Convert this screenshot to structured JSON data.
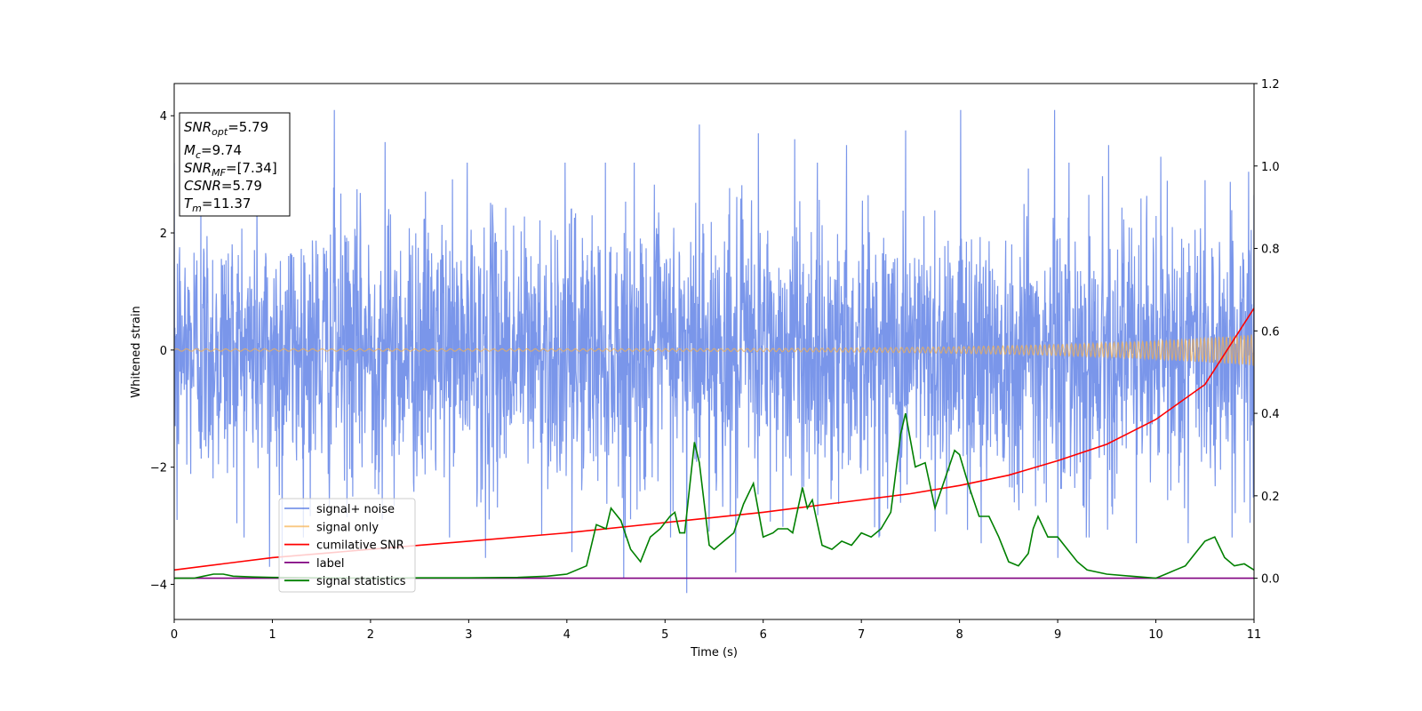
{
  "chart_data": {
    "type": "line",
    "title": "",
    "xlabel": "Time (s)",
    "ylabel": "Whitened strain",
    "xlim": [
      0,
      11
    ],
    "ylim": [
      -4.6,
      4.55
    ],
    "y2lim": [
      -0.1,
      1.2
    ],
    "x_ticks": [
      "0",
      "1",
      "2",
      "3",
      "4",
      "5",
      "6",
      "7",
      "8",
      "9",
      "10",
      "11"
    ],
    "y_ticks": [
      "−4",
      "−2",
      "0",
      "2",
      "4"
    ],
    "y2_ticks": [
      "0.0",
      "0.2",
      "0.4",
      "0.6",
      "0.8",
      "1.0",
      "1.2"
    ],
    "grid": false,
    "legend_position": "lower-left",
    "annotation_box": {
      "position": "top-left",
      "lines": [
        {
          "base": "SNR",
          "sub": "opt",
          "value": "=5.79"
        },
        {
          "base": "M",
          "sub": "c",
          "value": "=9.74"
        },
        {
          "base": "SNR",
          "sub": "MF",
          "value": "=[7.34]"
        },
        {
          "base": "CSNR",
          "sub": "",
          "value": "=5.79"
        },
        {
          "base": "T",
          "sub": "m",
          "value": "=11.37"
        }
      ]
    },
    "series": [
      {
        "name": "signal+ noise",
        "color": "#4169e1",
        "axis": "left",
        "style": "noise",
        "noise_std": 1.0,
        "peaks": [
          [
            0.03,
            -2.9
          ],
          [
            0.27,
            2.5
          ],
          [
            0.97,
            -3.7
          ],
          [
            1.1,
            -3.6
          ],
          [
            1.63,
            4.1
          ],
          [
            2.15,
            3.55
          ],
          [
            3.17,
            -3.55
          ],
          [
            4.05,
            -3.45
          ],
          [
            4.58,
            -3.9
          ],
          [
            5.22,
            -4.15
          ],
          [
            5.35,
            3.85
          ],
          [
            5.45,
            -3.1
          ],
          [
            5.72,
            -3.8
          ],
          [
            5.95,
            3.7
          ],
          [
            6.32,
            3.6
          ],
          [
            6.85,
            3.5
          ],
          [
            7.45,
            3.75
          ],
          [
            7.75,
            -3.1
          ],
          [
            8.01,
            4.1
          ],
          [
            8.22,
            -3.3
          ],
          [
            8.7,
            3.1
          ],
          [
            8.97,
            4.1
          ],
          [
            9.0,
            -3.55
          ],
          [
            9.32,
            -3.2
          ],
          [
            9.52,
            3.5
          ],
          [
            9.8,
            -3.3
          ],
          [
            10.05,
            3.3
          ],
          [
            10.33,
            -3.3
          ],
          [
            10.5,
            2.9
          ],
          [
            10.96,
            -2.95
          ]
        ]
      },
      {
        "name": "signal only",
        "color": "#f6b04c",
        "axis": "left",
        "style": "chirp",
        "amp_start": 0.02,
        "amp_end": 0.27
      },
      {
        "name": "cumilative SNR",
        "color": "#ff0000",
        "axis": "right",
        "x": [
          0,
          1,
          2,
          3,
          4,
          5,
          6,
          7,
          7.5,
          8,
          8.5,
          9,
          9.5,
          10,
          10.5,
          11
        ],
        "values": [
          0.02,
          0.05,
          0.07,
          0.09,
          0.11,
          0.135,
          0.16,
          0.19,
          0.205,
          0.225,
          0.25,
          0.285,
          0.325,
          0.385,
          0.47,
          0.655
        ]
      },
      {
        "name": "label",
        "color": "#800080",
        "axis": "right",
        "x": [
          0,
          11
        ],
        "values": [
          0,
          0
        ]
      },
      {
        "name": "signal statistics",
        "color": "#008000",
        "axis": "right",
        "x": [
          0,
          0.2,
          0.3,
          0.4,
          0.5,
          0.6,
          0.8,
          1.0,
          1.5,
          2.0,
          2.5,
          3.0,
          3.5,
          3.8,
          4.0,
          4.1,
          4.2,
          4.3,
          4.4,
          4.45,
          4.55,
          4.65,
          4.75,
          4.85,
          4.95,
          5.05,
          5.1,
          5.15,
          5.2,
          5.3,
          5.35,
          5.45,
          5.5,
          5.6,
          5.7,
          5.8,
          5.9,
          6.0,
          6.1,
          6.15,
          6.25,
          6.3,
          6.4,
          6.45,
          6.5,
          6.6,
          6.7,
          6.8,
          6.9,
          7.0,
          7.1,
          7.2,
          7.3,
          7.4,
          7.45,
          7.55,
          7.65,
          7.75,
          7.85,
          7.95,
          8.0,
          8.1,
          8.2,
          8.3,
          8.4,
          8.5,
          8.6,
          8.7,
          8.75,
          8.8,
          8.9,
          9.0,
          9.1,
          9.2,
          9.3,
          9.5,
          10.0,
          10.1,
          10.2,
          10.3,
          10.4,
          10.5,
          10.6,
          10.7,
          10.8,
          10.9,
          11.0
        ],
        "values": [
          0.0,
          0.0,
          0.005,
          0.01,
          0.01,
          0.005,
          0.003,
          0.002,
          0.001,
          0.0,
          0.001,
          0.001,
          0.002,
          0.005,
          0.01,
          0.02,
          0.03,
          0.13,
          0.12,
          0.17,
          0.14,
          0.07,
          0.04,
          0.1,
          0.12,
          0.15,
          0.16,
          0.11,
          0.11,
          0.33,
          0.28,
          0.08,
          0.07,
          0.09,
          0.11,
          0.18,
          0.23,
          0.1,
          0.11,
          0.12,
          0.12,
          0.11,
          0.22,
          0.17,
          0.19,
          0.08,
          0.07,
          0.09,
          0.08,
          0.11,
          0.1,
          0.12,
          0.16,
          0.35,
          0.4,
          0.27,
          0.28,
          0.17,
          0.24,
          0.31,
          0.3,
          0.22,
          0.15,
          0.15,
          0.1,
          0.04,
          0.03,
          0.06,
          0.12,
          0.15,
          0.1,
          0.1,
          0.07,
          0.04,
          0.02,
          0.01,
          0.0,
          0.01,
          0.02,
          0.03,
          0.06,
          0.09,
          0.1,
          0.05,
          0.03,
          0.035,
          0.02
        ]
      }
    ]
  }
}
